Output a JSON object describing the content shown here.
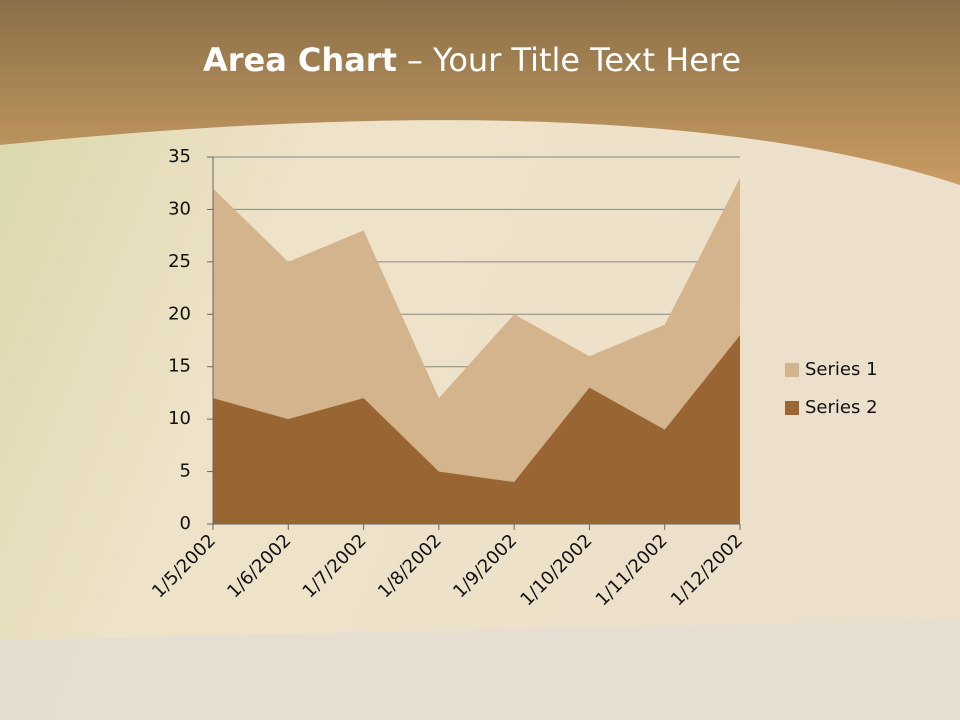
{
  "chart_data": {
    "type": "area",
    "title_bold": "Area Chart",
    "title": "– Your Title Text Here",
    "categories": [
      "1/5/2002",
      "1/6/2002",
      "1/7/2002",
      "1/8/2002",
      "1/9/2002",
      "1/10/2002",
      "1/11/2002",
      "1/12/2002"
    ],
    "series": [
      {
        "name": "Series 1",
        "color": "#d4b48c",
        "values": [
          32,
          25,
          28,
          12,
          20,
          16,
          19,
          33
        ]
      },
      {
        "name": "Series 2",
        "color": "#996633",
        "values": [
          12,
          10,
          12,
          5,
          4,
          13,
          9,
          18
        ]
      }
    ],
    "ylim": [
      0,
      35
    ],
    "yticks": [
      0,
      5,
      10,
      15,
      20,
      25,
      30,
      35
    ],
    "grid": true,
    "legend": "right"
  }
}
